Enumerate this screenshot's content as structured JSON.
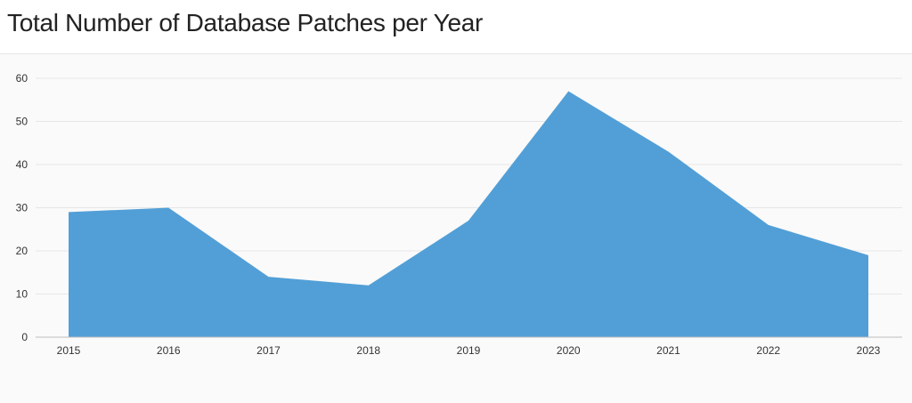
{
  "page": {
    "title": "Total Number of Database Patches per Year"
  },
  "colors": {
    "area_fill": "#529fd7",
    "grid": "#e6e6e6",
    "axis": "#bdbdbd",
    "background": "#fafafa"
  },
  "chart_data": {
    "type": "area",
    "title": "Total Number of Database Patches per Year",
    "xlabel": "",
    "ylabel": "",
    "categories": [
      "2015",
      "2016",
      "2017",
      "2018",
      "2019",
      "2020",
      "2021",
      "2022",
      "2023"
    ],
    "series": [
      {
        "values": [
          29,
          30,
          14,
          12,
          27,
          57,
          43,
          26,
          19
        ]
      }
    ],
    "ylim": [
      0,
      60
    ],
    "yticks": [
      0,
      10,
      20,
      30,
      40,
      50,
      60
    ],
    "grid": true,
    "legend": "none"
  }
}
